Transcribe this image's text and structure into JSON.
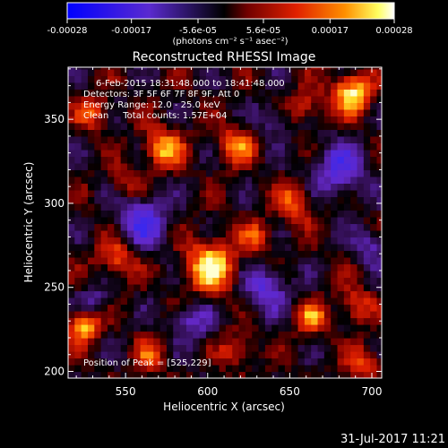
{
  "colorbar": {
    "ticks": [
      "-0.00028",
      "-0.00017",
      "-5.6e-05",
      "5.6e-05",
      "0.00017",
      "0.00028"
    ],
    "unit_label": "(photons cm⁻² s⁻¹ asec⁻²)",
    "range": [
      -0.00028,
      0.00028
    ]
  },
  "footer_timestamp": "31-Jul-2017 11:21",
  "chart_data": {
    "type": "heatmap",
    "title": "Reconstructed RHESSI Image",
    "xlabel": "Heliocentric X (arcsec)",
    "ylabel": "Heliocentric Y (arcsec)",
    "xlim": [
      515,
      706
    ],
    "ylim": [
      196,
      381
    ],
    "x_ticks": [
      550,
      600,
      650,
      700
    ],
    "y_ticks": [
      200,
      250,
      300,
      350
    ],
    "colormap": [
      "#0000ff",
      "#6020c0",
      "#000000",
      "#b01000",
      "#ff6000",
      "#ffff80",
      "#ffffff"
    ],
    "annotations": [
      "6-Feb-2015 18:31:48.000 to 18:41:48.000",
      "Detectors: 3F 5F 6F 7F 8F 9F, Att 0",
      "Energy Range: 12.0 - 25.0 keV",
      "Clean     Total counts: 1.57E+04"
    ],
    "peak_label": "Position of Peak = [525,229]",
    "sources": [
      {
        "x": 525,
        "y": 229,
        "value": 1.0,
        "r": 10
      },
      {
        "x": 602,
        "y": 263,
        "value": 0.9,
        "r": 16
      },
      {
        "x": 688,
        "y": 366,
        "value": 0.95,
        "r": 12
      },
      {
        "x": 573,
        "y": 333,
        "value": 0.75,
        "r": 12
      },
      {
        "x": 545,
        "y": 268,
        "value": 0.6,
        "r": 12
      },
      {
        "x": 618,
        "y": 335,
        "value": 0.6,
        "r": 12
      },
      {
        "x": 653,
        "y": 300,
        "value": 0.55,
        "r": 12
      },
      {
        "x": 663,
        "y": 232,
        "value": 0.6,
        "r": 10
      },
      {
        "x": 690,
        "y": 240,
        "value": 0.55,
        "r": 10
      },
      {
        "x": 565,
        "y": 210,
        "value": 0.45,
        "r": 10
      },
      {
        "x": 618,
        "y": 213,
        "value": 0.5,
        "r": 10
      },
      {
        "x": 695,
        "y": 205,
        "value": 0.55,
        "r": 10
      },
      {
        "x": 530,
        "y": 355,
        "value": 0.55,
        "r": 10
      },
      {
        "x": 660,
        "y": 358,
        "value": 0.5,
        "r": 10
      },
      {
        "x": 550,
        "y": 312,
        "value": 0.4,
        "r": 10
      },
      {
        "x": 630,
        "y": 280,
        "value": 0.45,
        "r": 10
      }
    ],
    "negative_regions": [
      {
        "x": 560,
        "y": 290,
        "value": -0.7,
        "r": 16
      },
      {
        "x": 635,
        "y": 250,
        "value": -0.6,
        "r": 14
      },
      {
        "x": 680,
        "y": 320,
        "value": -0.65,
        "r": 16
      },
      {
        "x": 590,
        "y": 230,
        "value": -0.5,
        "r": 12
      },
      {
        "x": 530,
        "y": 240,
        "value": -0.5,
        "r": 10
      },
      {
        "x": 640,
        "y": 350,
        "value": -0.45,
        "r": 10
      },
      {
        "x": 700,
        "y": 275,
        "value": -0.5,
        "r": 10
      }
    ]
  }
}
